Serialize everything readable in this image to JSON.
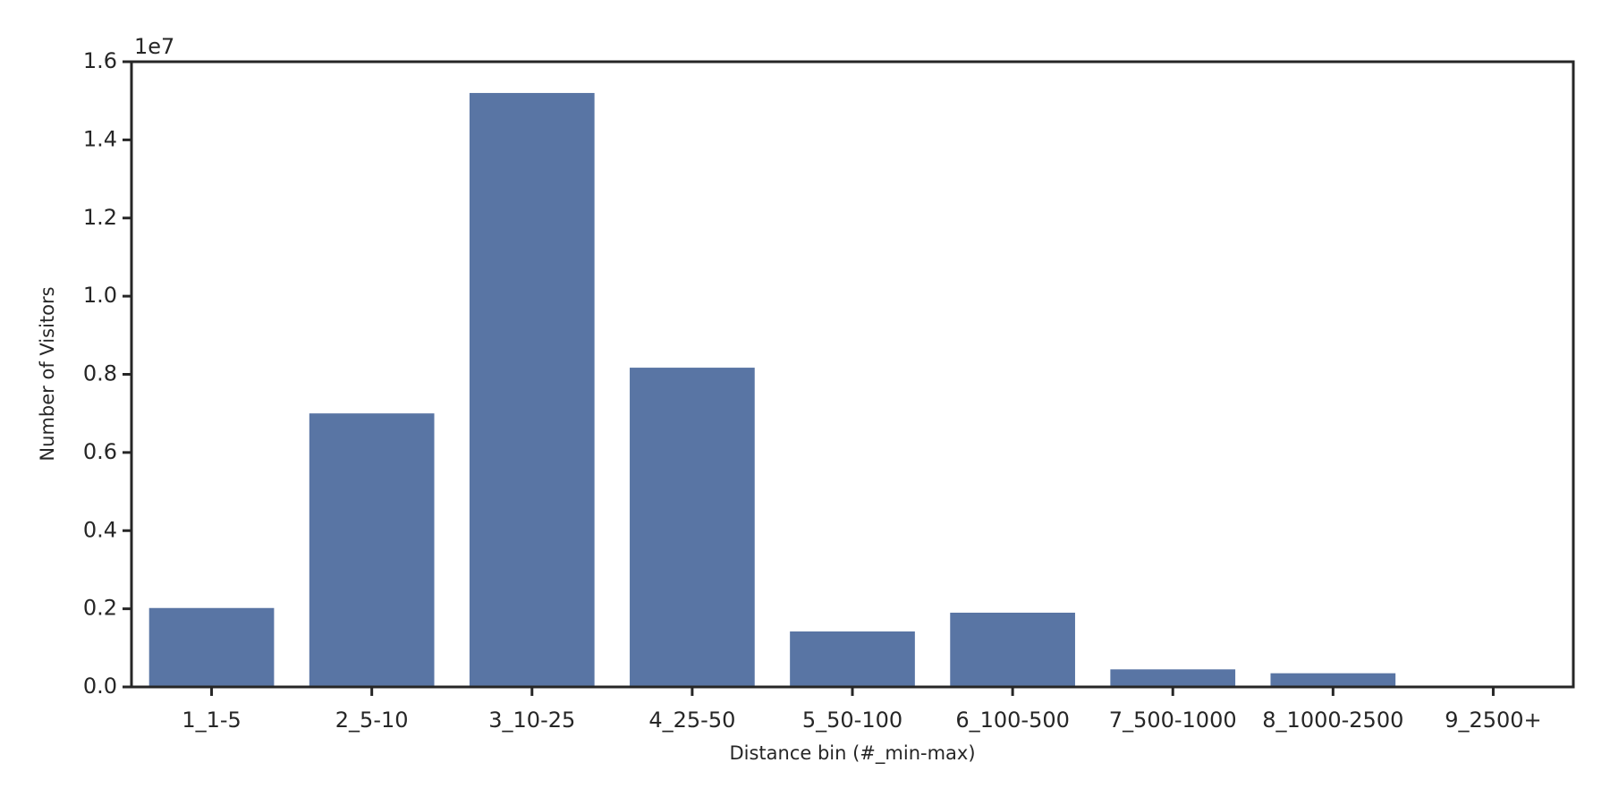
{
  "chart_data": {
    "type": "bar",
    "x_label": "Distance bin (#_min-max)",
    "y_label": "Number of Visitors",
    "offset_label": "1e7",
    "categories": [
      "1_1-5",
      "2_5-10",
      "3_10-25",
      "4_25-50",
      "5_50-100",
      "6_100-500",
      "7_500-1000",
      "8_1000-2500",
      "9_2500+"
    ],
    "values": [
      0.202,
      0.7,
      1.52,
      0.817,
      0.142,
      0.19,
      0.045,
      0.035,
      0.001
    ],
    "color": "#5975a4",
    "ylim": [
      0,
      1.6
    ],
    "yticks": [
      {
        "value": 0,
        "label": "0.0"
      },
      0.2,
      0.4,
      0.6,
      0.8,
      {
        "value": 1,
        "label": "1.0"
      },
      1.2,
      1.4,
      1.6
    ]
  }
}
